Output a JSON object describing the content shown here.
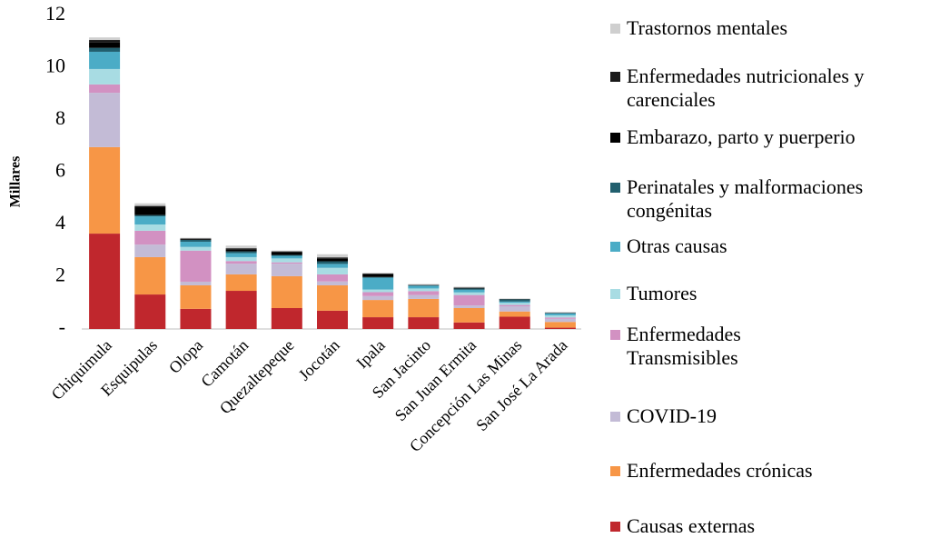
{
  "chart_data": {
    "type": "stacked_bar",
    "ylabel": "Millares",
    "categories": [
      "Chiquimula",
      "Esquipulas",
      "Olopa",
      "Camotán",
      "Quezaltepeque",
      "Jocotán",
      "Ipala",
      "San Jacinto",
      "San Juan Ermita",
      "Concepción Las Minas",
      "San José La Arada"
    ],
    "series": [
      {
        "name": "Causas externas",
        "color": "#c0272d",
        "values": [
          3.65,
          1.32,
          0.77,
          1.46,
          0.8,
          0.7,
          0.45,
          0.45,
          0.25,
          0.47,
          0.05
        ]
      },
      {
        "name": "Enfermedades crónicas",
        "color": "#f79646",
        "values": [
          3.31,
          1.43,
          0.9,
          0.63,
          1.22,
          0.97,
          0.66,
          0.7,
          0.55,
          0.2,
          0.22
        ]
      },
      {
        "name": "COVID-19",
        "color": "#c3bbd6",
        "values": [
          2.08,
          0.48,
          0.14,
          0.41,
          0.48,
          0.15,
          0.15,
          0.15,
          0.1,
          0.2,
          0.12
        ]
      },
      {
        "name": "Enfermedades Transmisibles",
        "color": "#d291c2",
        "values": [
          0.32,
          0.53,
          1.19,
          0.1,
          0.05,
          0.27,
          0.15,
          0.15,
          0.4,
          0.05,
          0.05
        ]
      },
      {
        "name": "Tumores",
        "color": "#a8dce3",
        "values": [
          0.59,
          0.24,
          0.14,
          0.15,
          0.15,
          0.25,
          0.1,
          0.1,
          0.1,
          0.08,
          0.08
        ]
      },
      {
        "name": "Otras causas",
        "color": "#4bacc6",
        "values": [
          0.66,
          0.31,
          0.2,
          0.15,
          0.1,
          0.15,
          0.45,
          0.1,
          0.1,
          0.05,
          0.08
        ]
      },
      {
        "name": "Perinatales y malformaciones congénitas",
        "color": "#215f6e",
        "values": [
          0.15,
          0.05,
          0.07,
          0.07,
          0.03,
          0.1,
          0.03,
          0.02,
          0.05,
          0.08,
          0.01
        ]
      },
      {
        "name": "Embarazo, parto y puerperio",
        "color": "#000000",
        "values": [
          0.2,
          0.3,
          0.03,
          0.08,
          0.12,
          0.1,
          0.1,
          0.01,
          0.02,
          0.01,
          0.01
        ]
      },
      {
        "name": "Enfermedades nutricionales y carenciales",
        "color": "#1a1a1a",
        "values": [
          0.1,
          0.05,
          0.02,
          0.04,
          0.02,
          0.05,
          0.03,
          0.01,
          0.02,
          0.01,
          0.01
        ]
      },
      {
        "name": "Trastornos mentales",
        "color": "#cfcfcf",
        "values": [
          0.1,
          0.1,
          0.03,
          0.1,
          0.03,
          0.12,
          0.03,
          0.03,
          0.03,
          0.02,
          0.02
        ]
      }
    ],
    "ylim": [
      0,
      12
    ],
    "yticks": [
      {
        "value": 0,
        "label": "-"
      },
      2,
      4,
      6,
      8,
      10,
      12
    ]
  }
}
